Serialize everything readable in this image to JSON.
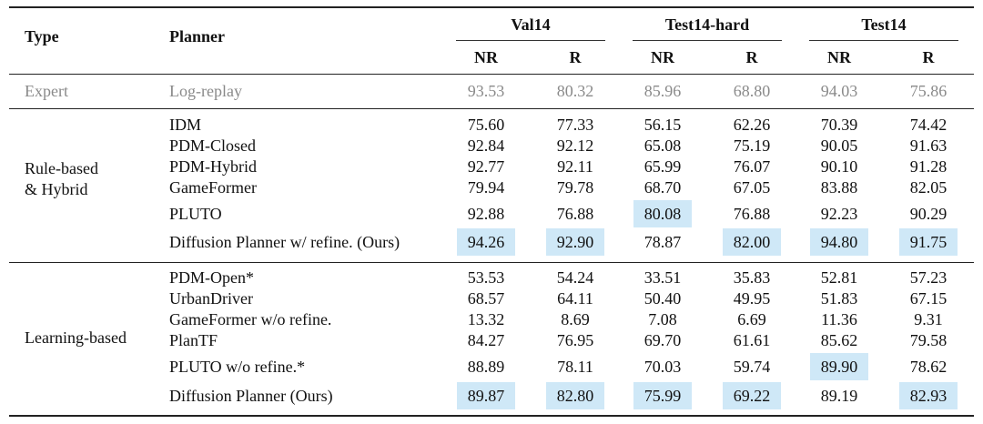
{
  "header": {
    "type_label": "Type",
    "planner_label": "Planner",
    "groups": [
      "Val14",
      "Test14-hard",
      "Test14"
    ],
    "sub": [
      "NR",
      "R",
      "NR",
      "R",
      "NR",
      "R"
    ]
  },
  "expert": {
    "type": "Expert",
    "planner": "Log-replay",
    "values": [
      "93.53",
      "80.32",
      "85.96",
      "68.80",
      "94.03",
      "75.86"
    ]
  },
  "sections": [
    {
      "type_lines": [
        "Rule-based",
        "& Hybrid"
      ],
      "rows": [
        {
          "planner": "IDM",
          "values": [
            "75.60",
            "77.33",
            "56.15",
            "62.26",
            "70.39",
            "74.42"
          ]
        },
        {
          "planner": "PDM-Closed",
          "values": [
            "92.84",
            "92.12",
            "65.08",
            "75.19",
            "90.05",
            "91.63"
          ]
        },
        {
          "planner": "PDM-Hybrid",
          "values": [
            "92.77",
            "92.11",
            "65.99",
            "76.07",
            "90.10",
            "91.28"
          ]
        },
        {
          "planner": "GameFormer",
          "values": [
            "79.94",
            "79.78",
            "68.70",
            "67.05",
            "83.88",
            "82.05"
          ]
        },
        {
          "planner": "PLUTO",
          "values": [
            "92.88",
            "76.88",
            "80.08",
            "76.88",
            "92.23",
            "90.29"
          ]
        },
        {
          "planner": "Diffusion Planner w/ refine. (Ours)",
          "values": [
            "94.26",
            "92.90",
            "78.87",
            "82.00",
            "94.80",
            "91.75"
          ]
        }
      ]
    },
    {
      "type_lines": [
        "Learning-based"
      ],
      "rows": [
        {
          "planner": "PDM-Open*",
          "values": [
            "53.53",
            "54.24",
            "33.51",
            "35.83",
            "52.81",
            "57.23"
          ]
        },
        {
          "planner": "UrbanDriver",
          "values": [
            "68.57",
            "64.11",
            "50.40",
            "49.95",
            "51.83",
            "67.15"
          ]
        },
        {
          "planner": "GameFormer w/o refine.",
          "values": [
            "13.32",
            "8.69",
            "7.08",
            "6.69",
            "11.36",
            "9.31"
          ]
        },
        {
          "planner": "PlanTF",
          "values": [
            "84.27",
            "76.95",
            "69.70",
            "61.61",
            "85.62",
            "79.58"
          ]
        },
        {
          "planner": "PLUTO w/o refine.*",
          "values": [
            "88.89",
            "78.11",
            "70.03",
            "59.74",
            "89.90",
            "78.62"
          ]
        },
        {
          "planner": "Diffusion Planner (Ours)",
          "values": [
            "89.87",
            "82.80",
            "75.99",
            "69.22",
            "89.19",
            "82.93"
          ]
        }
      ]
    }
  ],
  "highlight_color": "#cfe8f7",
  "highlighted_cells": [
    {
      "section": 0,
      "row": 4,
      "col": 2
    },
    {
      "section": 0,
      "row": 5,
      "col": 0
    },
    {
      "section": 0,
      "row": 5,
      "col": 1
    },
    {
      "section": 0,
      "row": 5,
      "col": 3
    },
    {
      "section": 0,
      "row": 5,
      "col": 4
    },
    {
      "section": 0,
      "row": 5,
      "col": 5
    },
    {
      "section": 1,
      "row": 4,
      "col": 4
    },
    {
      "section": 1,
      "row": 5,
      "col": 0
    },
    {
      "section": 1,
      "row": 5,
      "col": 1
    },
    {
      "section": 1,
      "row": 5,
      "col": 2
    },
    {
      "section": 1,
      "row": 5,
      "col": 3
    },
    {
      "section": 1,
      "row": 5,
      "col": 5
    }
  ]
}
